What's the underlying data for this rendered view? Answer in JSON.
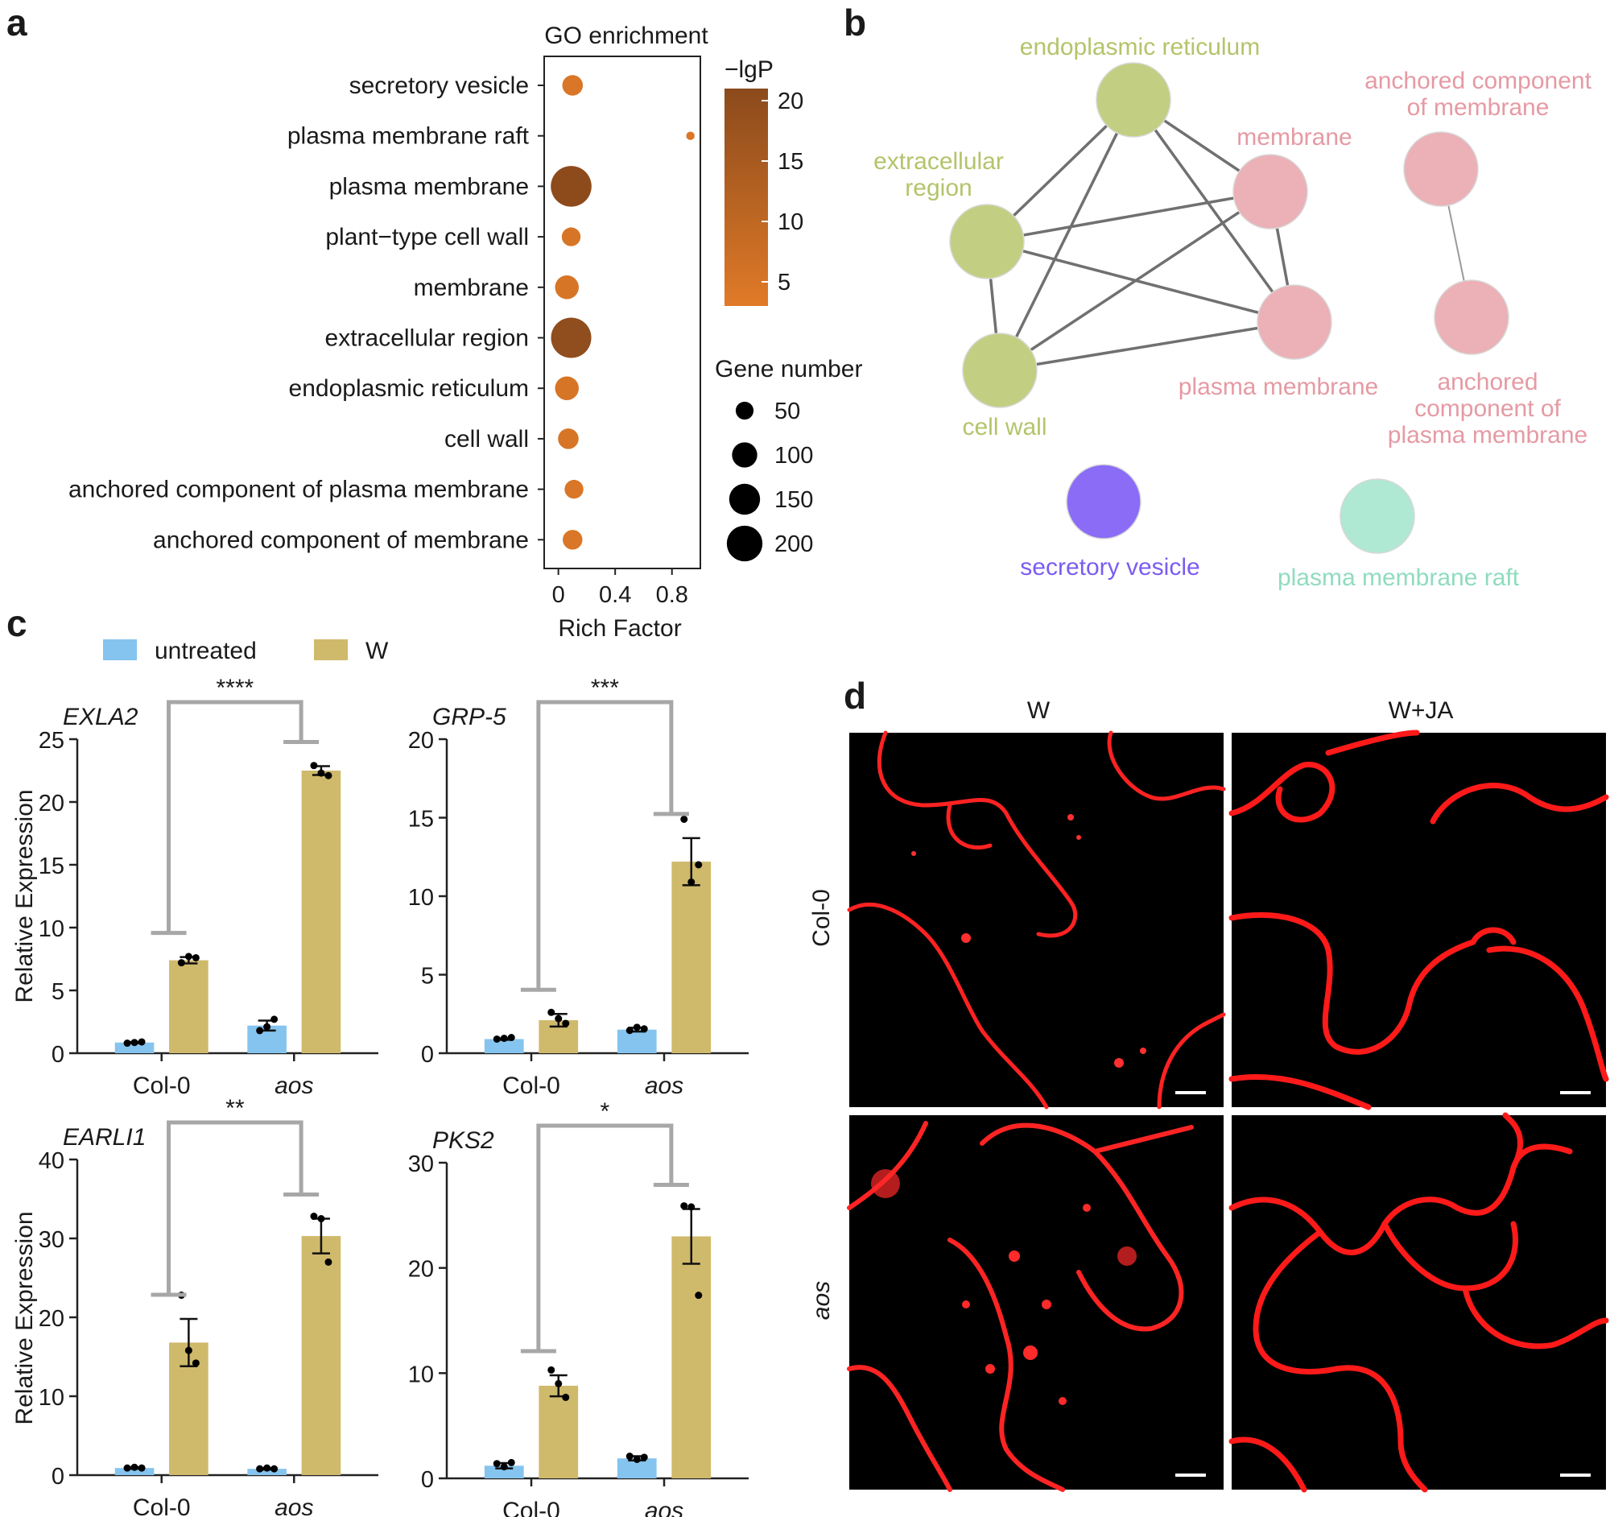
{
  "panels": {
    "a": "a",
    "b": "b",
    "c": "c",
    "d": "d"
  },
  "chart_data": [
    {
      "panel": "a",
      "type": "scatter",
      "title": "GO enrichment",
      "xlabel": "Rich Factor",
      "ylabel": "",
      "xlim": [
        -0.1,
        1.0
      ],
      "xticks": [
        "0",
        "0.4",
        "0.8"
      ],
      "xtick_values": [
        0,
        0.4,
        0.8
      ],
      "color_legend": {
        "title": "−lgP",
        "ticks": [
          "20",
          "15",
          "10",
          "5"
        ],
        "tick_values": [
          20,
          15,
          10,
          5
        ],
        "range": [
          3,
          21
        ],
        "low_color": "#e07a28",
        "high_color": "#8b4a1c"
      },
      "size_legend": {
        "title": "Gene number",
        "values": [
          50,
          100,
          150,
          200
        ],
        "labels": [
          "50",
          "100",
          "150",
          "200"
        ]
      },
      "terms": [
        {
          "term": "secretory vesicle",
          "rich_factor": 0.1,
          "neg_log_p": 4.5,
          "gene_number": 60
        },
        {
          "term": "plasma membrane raft",
          "rich_factor": 0.93,
          "neg_log_p": 4,
          "gene_number": 10
        },
        {
          "term": "plasma membrane",
          "rich_factor": 0.09,
          "neg_log_p": 20.5,
          "gene_number": 235
        },
        {
          "term": "plant−type cell wall",
          "rich_factor": 0.09,
          "neg_log_p": 5,
          "gene_number": 50
        },
        {
          "term": "membrane",
          "rich_factor": 0.06,
          "neg_log_p": 5,
          "gene_number": 80
        },
        {
          "term": "extracellular region",
          "rich_factor": 0.09,
          "neg_log_p": 20,
          "gene_number": 230
        },
        {
          "term": "endoplasmic reticulum",
          "rich_factor": 0.06,
          "neg_log_p": 5,
          "gene_number": 80
        },
        {
          "term": "cell wall",
          "rich_factor": 0.07,
          "neg_log_p": 5,
          "gene_number": 60
        },
        {
          "term": "anchored component of plasma membrane",
          "rich_factor": 0.11,
          "neg_log_p": 4.5,
          "gene_number": 50
        },
        {
          "term": "anchored component of membrane",
          "rich_factor": 0.1,
          "neg_log_p": 4.5,
          "gene_number": 55
        }
      ]
    },
    {
      "panel": "c",
      "type": "bar",
      "legend": [
        {
          "name": "untreated",
          "color": "#85c4ee"
        },
        {
          "name": "W",
          "color": "#cfb96b"
        }
      ],
      "ylabel": "Relative Expression",
      "groups": [
        "Col-0",
        "aos"
      ],
      "subplots": [
        {
          "gene": "EXLA2",
          "ylim": [
            0,
            25
          ],
          "yticks": [
            "0",
            "5",
            "10",
            "15",
            "20",
            "25"
          ],
          "ytick_values": [
            0,
            5,
            10,
            15,
            20,
            25
          ],
          "significance": "****",
          "series": [
            {
              "name": "untreated",
              "values": [
                0.85,
                2.2
              ],
              "sem": [
                0.05,
                0.4
              ],
              "points": [
                [
                  0.8,
                  0.85,
                  0.9
                ],
                [
                  1.8,
                  2.1,
                  2.7
                ]
              ]
            },
            {
              "name": "W",
              "values": [
                7.4,
                22.5
              ],
              "sem": [
                0.25,
                0.35
              ],
              "points": [
                [
                  7.2,
                  7.7,
                  7.6
                ],
                [
                  22.9,
                  22.3,
                  22.1
                ]
              ]
            }
          ]
        },
        {
          "gene": "GRP-5",
          "ylim": [
            0,
            20
          ],
          "yticks": [
            "0",
            "5",
            "10",
            "15",
            "20"
          ],
          "ytick_values": [
            0,
            5,
            10,
            15,
            20
          ],
          "significance": "***",
          "series": [
            {
              "name": "untreated",
              "values": [
                0.9,
                1.5
              ],
              "sem": [
                0.05,
                0.12
              ],
              "points": [
                [
                  0.9,
                  0.95,
                  1.0
                ],
                [
                  1.45,
                  1.65,
                  1.55
                ]
              ]
            },
            {
              "name": "W",
              "values": [
                2.1,
                12.2
              ],
              "sem": [
                0.4,
                1.5
              ],
              "points": [
                [
                  2.6,
                  2.2,
                  1.9
                ],
                [
                  14.9,
                  10.9,
                  12.0
                ]
              ]
            }
          ]
        },
        {
          "gene": "EARLI1",
          "ylim": [
            0,
            40
          ],
          "yticks": [
            "0",
            "10",
            "20",
            "30",
            "40"
          ],
          "ytick_values": [
            0,
            10,
            20,
            30,
            40
          ],
          "significance": "**",
          "series": [
            {
              "name": "untreated",
              "values": [
                0.9,
                0.8
              ],
              "sem": [
                0.1,
                0.1
              ],
              "points": [
                [
                  0.9,
                  1.0,
                  0.9
                ],
                [
                  0.8,
                  0.9,
                  0.8
                ]
              ]
            },
            {
              "name": "W",
              "values": [
                16.8,
                30.3
              ],
              "sem": [
                3.0,
                2.2
              ],
              "points": [
                [
                  22.8,
                  15.8,
                  14.2
                ],
                [
                  32.8,
                  32.5,
                  27.0
                ]
              ]
            }
          ]
        },
        {
          "gene": "PKS2",
          "ylim": [
            0,
            30
          ],
          "yticks": [
            "0",
            "10",
            "20",
            "30"
          ],
          "ytick_values": [
            0,
            10,
            20,
            30
          ],
          "significance": "*",
          "series": [
            {
              "name": "untreated",
              "values": [
                1.2,
                1.9
              ],
              "sem": [
                0.25,
                0.2
              ],
              "points": [
                [
                  1.4,
                  1.1,
                  1.5
                ],
                [
                  2.1,
                  1.8,
                  2.0
                ]
              ]
            },
            {
              "name": "W",
              "values": [
                8.8,
                23.0
              ],
              "sem": [
                1.0,
                2.6
              ],
              "points": [
                [
                  10.3,
                  9.0,
                  7.7
                ],
                [
                  25.9,
                  25.8,
                  17.4
                ]
              ]
            }
          ]
        }
      ]
    }
  ],
  "network": {
    "nodes": [
      {
        "id": "er",
        "label": [
          "endoplasmic reticulum"
        ],
        "color": "#c2cf82",
        "text_color": "#b3c46a"
      },
      {
        "id": "ecr",
        "label": [
          "extracellular",
          "region"
        ],
        "color": "#c2cf82",
        "text_color": "#b3c46a"
      },
      {
        "id": "cw",
        "label": [
          "cell wall"
        ],
        "color": "#c2cf82",
        "text_color": "#b3c46a"
      },
      {
        "id": "mem",
        "label": [
          "membrane"
        ],
        "color": "#ebb1b7",
        "text_color": "#e59aa3"
      },
      {
        "id": "pm",
        "label": [
          "plasma membrane"
        ],
        "color": "#ebb1b7",
        "text_color": "#e59aa3"
      },
      {
        "id": "acm",
        "label": [
          "anchored component",
          "of membrane"
        ],
        "color": "#ebb1b7",
        "text_color": "#e59aa3"
      },
      {
        "id": "acpm",
        "label": [
          "anchored",
          "component of",
          "plasma membrane"
        ],
        "color": "#ebb1b7",
        "text_color": "#e59aa3"
      },
      {
        "id": "sv",
        "label": [
          "secretory vesicle"
        ],
        "color": "#8b6cf6",
        "text_color": "#7b5cf0"
      },
      {
        "id": "pmr",
        "label": [
          "plasma membrane raft"
        ],
        "color": "#afe8d3",
        "text_color": "#8fdcbf"
      }
    ],
    "edges": [
      [
        "er",
        "ecr"
      ],
      [
        "er",
        "cw"
      ],
      [
        "er",
        "mem"
      ],
      [
        "er",
        "pm"
      ],
      [
        "ecr",
        "mem"
      ],
      [
        "ecr",
        "pm"
      ],
      [
        "ecr",
        "cw"
      ],
      [
        "cw",
        "mem"
      ],
      [
        "cw",
        "pm"
      ],
      [
        "mem",
        "pm"
      ],
      [
        "acm",
        "acpm"
      ]
    ]
  },
  "micrographs": {
    "columns": [
      "W",
      "W+JA"
    ],
    "rows": [
      "Col-0",
      "aos"
    ]
  }
}
